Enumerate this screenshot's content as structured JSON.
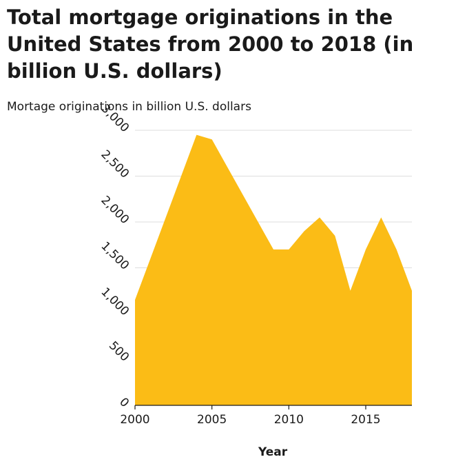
{
  "chart_data": {
    "type": "area",
    "title": "Total mortgage originations in the United States from 2000 to 2018 (in billion U.S. dollars)",
    "ylabel": "Mortage originations in billion U.S. dollars",
    "xlabel": "Year",
    "x": [
      2000,
      2001,
      2002,
      2003,
      2004,
      2005,
      2006,
      2007,
      2008,
      2009,
      2010,
      2011,
      2012,
      2013,
      2014,
      2015,
      2016,
      2017,
      2018
    ],
    "values": [
      1150,
      1600,
      2050,
      2500,
      2950,
      2900,
      2600,
      2300,
      2000,
      1700,
      1700,
      1900,
      2050,
      1850,
      1250,
      1700,
      2050,
      1700,
      1250
    ],
    "xlim": [
      2000,
      2018
    ],
    "ylim": [
      0,
      3000
    ],
    "x_ticks": [
      "2000",
      "2005",
      "2010",
      "2015"
    ],
    "y_ticks": [
      "0",
      "500",
      "1,000",
      "1,500",
      "2,000",
      "2,500",
      "3,000"
    ],
    "grid": "horizontal",
    "legend": "none",
    "fill_color": "#fbbc16",
    "grid_color": "#dddddd"
  }
}
